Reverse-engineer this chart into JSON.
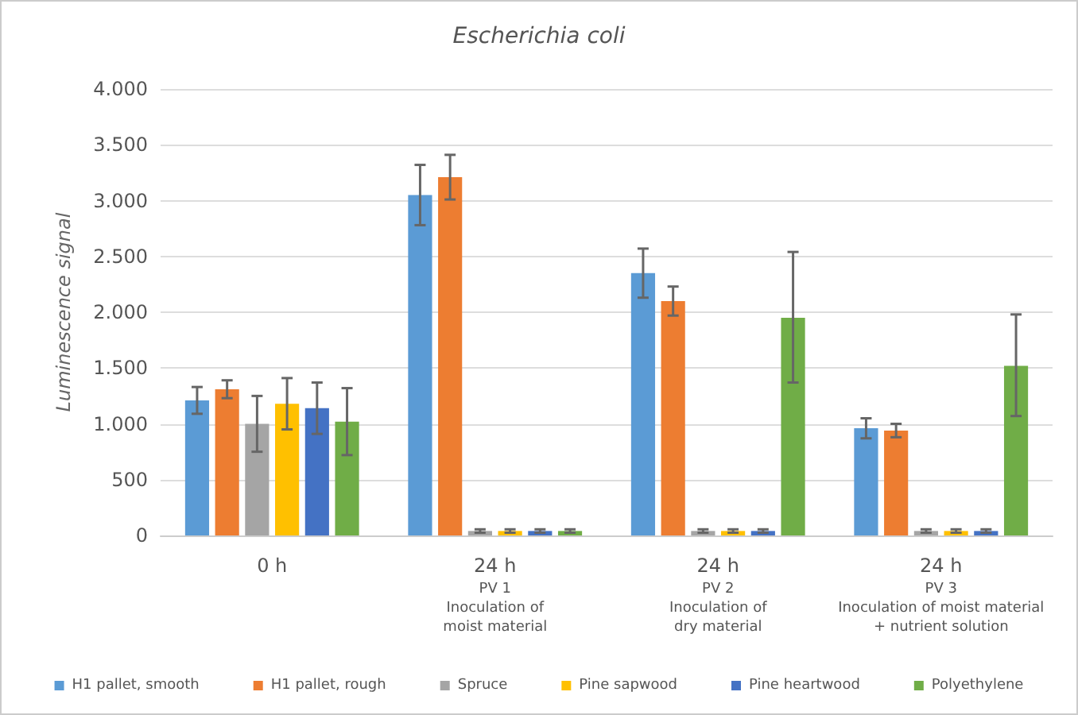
{
  "chart_data": {
    "type": "bar",
    "title": "Escherichia coli",
    "ylabel": "Luminescence signal",
    "categories": [
      "0 h",
      "24 h\nPV 1\nInoculation of\nmoist material",
      "24 h\nPV 2\nInoculation of\ndry material",
      "24 h\nPV 3\nInoculation of moist material\n+ nutrient solution"
    ],
    "series": [
      {
        "name": "H1 pallet, smooth",
        "color": "#5b9bd5",
        "values": [
          1210,
          3050,
          2350,
          960
        ],
        "errors": [
          120,
          270,
          220,
          90
        ]
      },
      {
        "name": "H1 pallet, rough",
        "color": "#ed7d31",
        "values": [
          1310,
          3210,
          2100,
          940
        ],
        "errors": [
          80,
          200,
          130,
          60
        ]
      },
      {
        "name": "Spruce",
        "color": "#a5a5a5",
        "values": [
          1000,
          40,
          40,
          40
        ],
        "errors": [
          250,
          15,
          15,
          15
        ]
      },
      {
        "name": "Pine sapwood",
        "color": "#ffc000",
        "values": [
          1180,
          40,
          40,
          40
        ],
        "errors": [
          230,
          15,
          15,
          15
        ]
      },
      {
        "name": "Pine heartwood",
        "color": "#4472c4",
        "values": [
          1140,
          40,
          40,
          40
        ],
        "errors": [
          230,
          15,
          15,
          15
        ]
      },
      {
        "name": "Polyethylene",
        "color": "#70ad47",
        "values": [
          1020,
          40,
          1950,
          1520
        ],
        "errors": [
          300,
          15,
          [
            1370,
            2540
          ],
          [
            1070,
            1980
          ]
        ]
      }
    ],
    "ylim": [
      0,
      4000
    ],
    "yticks": [
      {
        "value": 0,
        "label": "0"
      },
      {
        "value": 500,
        "label": "500"
      },
      {
        "value": 1000,
        "label": "1.000"
      },
      {
        "value": 1500,
        "label": "1.500"
      },
      {
        "value": 2000,
        "label": "2.000"
      },
      {
        "value": 2500,
        "label": "2.500"
      },
      {
        "value": 3000,
        "label": "3.000"
      },
      {
        "value": 3500,
        "label": "3.500"
      },
      {
        "value": 4000,
        "label": "4.000"
      }
    ],
    "grid": "y",
    "legend": "bottom"
  }
}
